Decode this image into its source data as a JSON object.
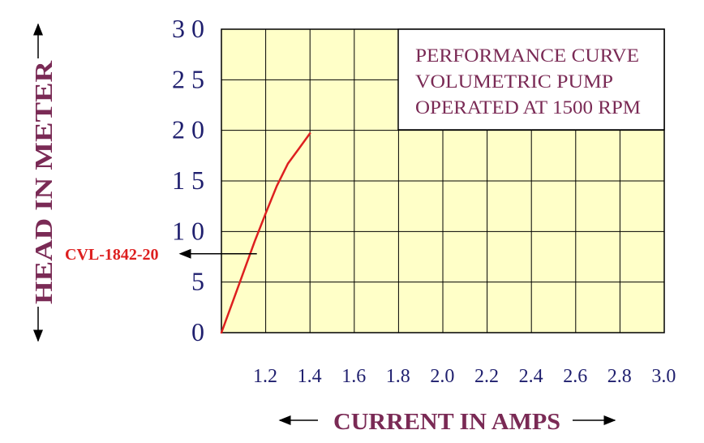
{
  "chart_data": {
    "type": "line",
    "title_lines": [
      "PERFORMANCE CURVE",
      "VOLUMETRIC  PUMP",
      "OPERATED AT 1500 RPM"
    ],
    "xlabel": "CURRENT IN AMPS",
    "ylabel": "HEAD IN METER",
    "x_tick_labels": [
      "1.2",
      "1.4",
      "1.6",
      "1.8",
      "2.0",
      "2.2",
      "2.4",
      "2.6",
      "2.8",
      "3.0"
    ],
    "y_tick_labels": [
      "0",
      "5",
      "1 0",
      "1 5",
      "2 0",
      "2 5",
      "3 0"
    ],
    "xlim": [
      1.0,
      3.0
    ],
    "ylim": [
      0,
      30
    ],
    "grid": true,
    "series": [
      {
        "name": "CVL-1842-20",
        "points": [
          [
            1.0,
            0
          ],
          [
            1.05,
            3
          ],
          [
            1.1,
            6
          ],
          [
            1.15,
            9
          ],
          [
            1.2,
            11.8
          ],
          [
            1.25,
            14.5
          ],
          [
            1.3,
            16.7
          ],
          [
            1.35,
            18.2
          ],
          [
            1.4,
            19.7
          ]
        ]
      }
    ],
    "annotation": {
      "text": "CVL-1842-20",
      "points_to": [
        1.16,
        7.8
      ]
    },
    "colors": {
      "plot_background": "#ffffc8",
      "grid": "#000000",
      "curve": "#dd1f1f",
      "annotation": "#dd1f1f",
      "tick_labels": "#1f1f6e",
      "axis_titles": "#7a2a55",
      "title": "#7a2a55"
    }
  }
}
